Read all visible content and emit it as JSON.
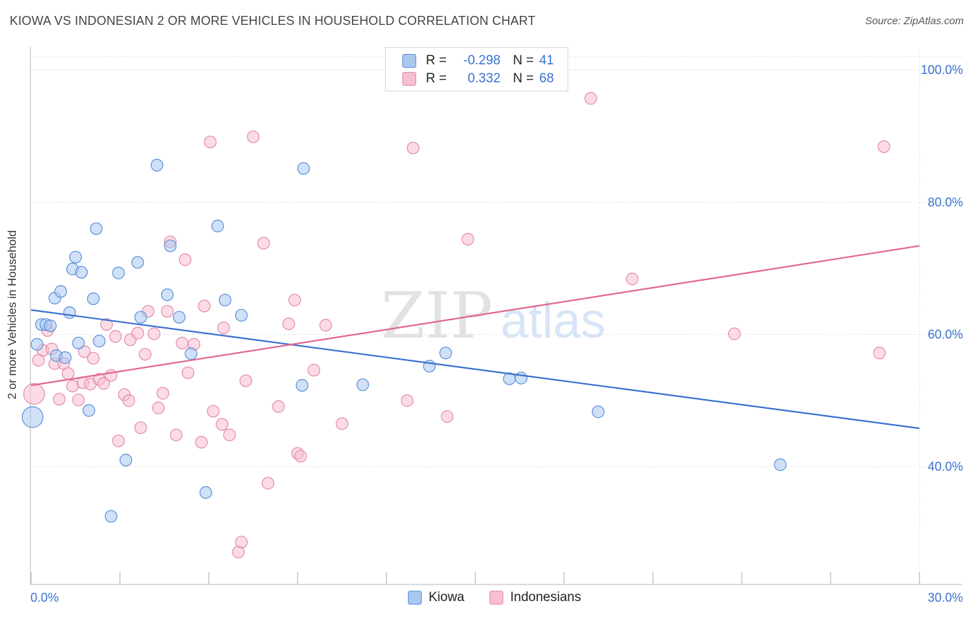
{
  "header": {
    "title": "KIOWA VS INDONESIAN 2 OR MORE VEHICLES IN HOUSEHOLD CORRELATION CHART",
    "source": "Source: ZipAtlas.com"
  },
  "legend_top": {
    "rows": [
      {
        "r_label": "R =",
        "r_value": "-0.298",
        "n_label": "N =",
        "n_value": "41"
      },
      {
        "r_label": "R =",
        "r_value": "0.332",
        "n_label": "N =",
        "n_value": "68"
      }
    ]
  },
  "legend_bottom": {
    "kiowa": "Kiowa",
    "indonesians": "Indonesians"
  },
  "watermark": {
    "zip": "ZIP",
    "atlas": "atlas"
  },
  "colors": {
    "kiowa_fill": "#a9c8f0",
    "kiowa_stroke": "#5b8fd8",
    "kiowa_line": "#3a72d0",
    "indo_fill": "#f7bfd0",
    "indo_stroke": "#e58aa8",
    "indo_line": "#e0678f",
    "tick_label": "#3a72d0"
  },
  "chart_data": {
    "type": "scatter",
    "title": "KIOWA VS INDONESIAN 2 OR MORE VEHICLES IN HOUSEHOLD CORRELATION CHART",
    "xlabel": "",
    "ylabel": "2 or more Vehicles in Household",
    "xlim": [
      0,
      30
    ],
    "ylim": [
      21,
      102
    ],
    "x_tick_labels": [
      "0.0%",
      "30.0%"
    ],
    "y_ticks": [
      40,
      60,
      80,
      100
    ],
    "y_tick_labels": [
      "40.0%",
      "60.0%",
      "80.0%",
      "100.0%"
    ],
    "grid": true,
    "legend_position": "top-center",
    "series": [
      {
        "name": "Kiowa",
        "r": -0.298,
        "n": 41,
        "trend": {
          "x": [
            0,
            30
          ],
          "y": [
            63.7,
            45.8
          ]
        },
        "points": [
          {
            "x": 0.05,
            "y": 47.5,
            "big": true
          },
          {
            "x": 0.2,
            "y": 58.5
          },
          {
            "x": 0.35,
            "y": 61.5
          },
          {
            "x": 0.5,
            "y": 61.5
          },
          {
            "x": 0.65,
            "y": 61.3
          },
          {
            "x": 0.8,
            "y": 65.5
          },
          {
            "x": 0.85,
            "y": 56.8
          },
          {
            "x": 1.0,
            "y": 66.5
          },
          {
            "x": 1.15,
            "y": 56.5
          },
          {
            "x": 1.3,
            "y": 63.3
          },
          {
            "x": 1.4,
            "y": 69.9
          },
          {
            "x": 1.5,
            "y": 71.7
          },
          {
            "x": 1.6,
            "y": 58.7
          },
          {
            "x": 1.7,
            "y": 69.4
          },
          {
            "x": 1.95,
            "y": 48.5
          },
          {
            "x": 2.1,
            "y": 65.4
          },
          {
            "x": 2.2,
            "y": 76.0
          },
          {
            "x": 2.3,
            "y": 59.0
          },
          {
            "x": 2.7,
            "y": 32.5
          },
          {
            "x": 2.95,
            "y": 69.3
          },
          {
            "x": 3.2,
            "y": 41.0
          },
          {
            "x": 3.6,
            "y": 70.9
          },
          {
            "x": 3.7,
            "y": 62.6
          },
          {
            "x": 4.25,
            "y": 85.6
          },
          {
            "x": 4.6,
            "y": 66.0
          },
          {
            "x": 4.7,
            "y": 73.4
          },
          {
            "x": 5.0,
            "y": 62.6
          },
          {
            "x": 5.4,
            "y": 57.1
          },
          {
            "x": 5.9,
            "y": 36.1
          },
          {
            "x": 6.3,
            "y": 76.4
          },
          {
            "x": 6.55,
            "y": 65.2
          },
          {
            "x": 7.1,
            "y": 62.9
          },
          {
            "x": 9.15,
            "y": 52.3
          },
          {
            "x": 9.2,
            "y": 85.1
          },
          {
            "x": 11.2,
            "y": 52.4
          },
          {
            "x": 13.45,
            "y": 55.2
          },
          {
            "x": 14.0,
            "y": 57.2
          },
          {
            "x": 16.15,
            "y": 53.3
          },
          {
            "x": 16.55,
            "y": 53.4
          },
          {
            "x": 19.15,
            "y": 48.3
          },
          {
            "x": 25.3,
            "y": 40.3
          }
        ]
      },
      {
        "name": "Indonesians",
        "r": 0.332,
        "n": 68,
        "trend": {
          "x": [
            0,
            30
          ],
          "y": [
            52.3,
            73.4
          ]
        },
        "points": [
          {
            "x": 0.1,
            "y": 51.0,
            "big": true
          },
          {
            "x": 0.25,
            "y": 56.1
          },
          {
            "x": 0.4,
            "y": 57.6
          },
          {
            "x": 0.55,
            "y": 60.6
          },
          {
            "x": 0.7,
            "y": 57.8
          },
          {
            "x": 0.8,
            "y": 55.6
          },
          {
            "x": 0.95,
            "y": 50.2
          },
          {
            "x": 1.1,
            "y": 55.6
          },
          {
            "x": 1.25,
            "y": 54.1
          },
          {
            "x": 1.4,
            "y": 52.2
          },
          {
            "x": 1.6,
            "y": 50.1
          },
          {
            "x": 1.75,
            "y": 52.7
          },
          {
            "x": 1.8,
            "y": 57.4
          },
          {
            "x": 2.0,
            "y": 52.5
          },
          {
            "x": 2.1,
            "y": 56.4
          },
          {
            "x": 2.3,
            "y": 53.2
          },
          {
            "x": 2.45,
            "y": 52.6
          },
          {
            "x": 2.55,
            "y": 61.5
          },
          {
            "x": 2.7,
            "y": 53.8
          },
          {
            "x": 2.85,
            "y": 59.7
          },
          {
            "x": 2.95,
            "y": 43.9
          },
          {
            "x": 3.15,
            "y": 50.9
          },
          {
            "x": 3.3,
            "y": 50.0
          },
          {
            "x": 3.35,
            "y": 59.2
          },
          {
            "x": 3.6,
            "y": 60.2
          },
          {
            "x": 3.7,
            "y": 45.9
          },
          {
            "x": 3.85,
            "y": 57.0
          },
          {
            "x": 3.95,
            "y": 63.5
          },
          {
            "x": 4.15,
            "y": 60.1
          },
          {
            "x": 4.3,
            "y": 48.9
          },
          {
            "x": 4.45,
            "y": 51.1
          },
          {
            "x": 4.6,
            "y": 63.5
          },
          {
            "x": 4.7,
            "y": 74.0
          },
          {
            "x": 4.9,
            "y": 44.8
          },
          {
            "x": 5.1,
            "y": 58.7
          },
          {
            "x": 5.2,
            "y": 71.3
          },
          {
            "x": 5.3,
            "y": 54.2
          },
          {
            "x": 5.5,
            "y": 58.5
          },
          {
            "x": 5.75,
            "y": 43.7
          },
          {
            "x": 5.85,
            "y": 64.3
          },
          {
            "x": 6.05,
            "y": 89.1
          },
          {
            "x": 6.15,
            "y": 48.4
          },
          {
            "x": 6.45,
            "y": 46.4
          },
          {
            "x": 6.5,
            "y": 61.0
          },
          {
            "x": 6.7,
            "y": 44.8
          },
          {
            "x": 7.0,
            "y": 27.1
          },
          {
            "x": 7.1,
            "y": 28.6
          },
          {
            "x": 7.25,
            "y": 53.0
          },
          {
            "x": 7.5,
            "y": 89.9
          },
          {
            "x": 7.85,
            "y": 73.8
          },
          {
            "x": 8.0,
            "y": 37.5
          },
          {
            "x": 8.35,
            "y": 49.1
          },
          {
            "x": 8.7,
            "y": 61.6
          },
          {
            "x": 8.9,
            "y": 65.2
          },
          {
            "x": 9.0,
            "y": 42.0
          },
          {
            "x": 9.1,
            "y": 41.6
          },
          {
            "x": 9.55,
            "y": 54.6
          },
          {
            "x": 9.95,
            "y": 61.4
          },
          {
            "x": 10.5,
            "y": 46.5
          },
          {
            "x": 12.7,
            "y": 50.0
          },
          {
            "x": 12.9,
            "y": 88.2
          },
          {
            "x": 14.05,
            "y": 47.6
          },
          {
            "x": 14.75,
            "y": 74.4
          },
          {
            "x": 18.9,
            "y": 95.7
          },
          {
            "x": 20.3,
            "y": 68.4
          },
          {
            "x": 23.75,
            "y": 60.1
          },
          {
            "x": 28.65,
            "y": 57.2
          },
          {
            "x": 28.8,
            "y": 88.4
          }
        ]
      }
    ]
  }
}
